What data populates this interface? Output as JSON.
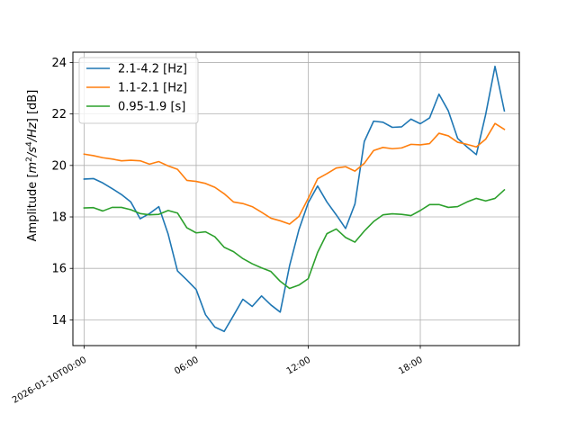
{
  "chart_data": {
    "type": "line",
    "title": "",
    "xlabel": "",
    "ylabel": "Amplitude [m²/s⁴/Hz] [dB]",
    "ylabel_parts": {
      "prefix": "Amplitude [",
      "m": "m",
      "sup1": "2",
      "s": "/s",
      "sup2": "4",
      "hz": "/Hz",
      "suffix": "] [dB]"
    },
    "xlim": [
      -0.6,
      23.3
    ],
    "ylim": [
      13.0,
      24.4
    ],
    "xticks": [
      {
        "value": 0,
        "label": "2026-01-10T00:00"
      },
      {
        "value": 6,
        "label": "06:00"
      },
      {
        "value": 12,
        "label": "12:00"
      },
      {
        "value": 18,
        "label": "18:00"
      }
    ],
    "yticks": [
      {
        "value": 14,
        "label": "14"
      },
      {
        "value": 16,
        "label": "16"
      },
      {
        "value": 18,
        "label": "18"
      },
      {
        "value": 20,
        "label": "20"
      },
      {
        "value": 22,
        "label": "22"
      },
      {
        "value": 24,
        "label": "24"
      }
    ],
    "grid": true,
    "legend_position": "top-left",
    "x": [
      0,
      0.5,
      1,
      1.5,
      2,
      2.5,
      3,
      3.5,
      4,
      4.5,
      5,
      5.5,
      6,
      6.5,
      7,
      7.5,
      8,
      8.5,
      9,
      9.5,
      10,
      10.5,
      11,
      11.5,
      12,
      12.5,
      13,
      13.5,
      14,
      14.5,
      15,
      15.5,
      16,
      16.5,
      17,
      17.5,
      18,
      18.5,
      19,
      19.5,
      20,
      20.5,
      21,
      21.5,
      22,
      22.5
    ],
    "series": [
      {
        "name": "2.1-4.2 [Hz]",
        "color": "#1f77b4",
        "values": [
          19.47,
          19.49,
          19.32,
          19.1,
          18.87,
          18.58,
          17.93,
          18.13,
          18.4,
          17.33,
          15.9,
          15.55,
          15.18,
          14.2,
          13.72,
          13.55,
          14.17,
          14.8,
          14.52,
          14.93,
          14.58,
          14.3,
          16.1,
          17.5,
          18.55,
          19.2,
          18.58,
          18.08,
          17.55,
          18.5,
          20.93,
          21.72,
          21.68,
          21.48,
          21.5,
          21.8,
          21.62,
          21.85,
          22.77,
          22.12,
          21.05,
          20.72,
          20.42,
          21.98,
          23.85,
          22.12
        ]
      },
      {
        "name": "1.1-2.1 [Hz]",
        "color": "#ff7f0e",
        "values": [
          20.44,
          20.38,
          20.3,
          20.25,
          20.18,
          20.2,
          20.18,
          20.05,
          20.15,
          19.98,
          19.85,
          19.42,
          19.38,
          19.3,
          19.15,
          18.9,
          18.58,
          18.52,
          18.4,
          18.18,
          17.95,
          17.85,
          17.72,
          18.02,
          18.72,
          19.48,
          19.68,
          19.9,
          19.95,
          19.78,
          20.08,
          20.58,
          20.7,
          20.65,
          20.68,
          20.82,
          20.8,
          20.85,
          21.25,
          21.15,
          20.9,
          20.82,
          20.72,
          21.02,
          21.63,
          21.4
        ]
      },
      {
        "name": "0.95-1.9 [s]",
        "color": "#2ca02c",
        "values": [
          18.35,
          18.36,
          18.23,
          18.37,
          18.37,
          18.28,
          18.13,
          18.08,
          18.1,
          18.25,
          18.15,
          17.58,
          17.38,
          17.42,
          17.23,
          16.82,
          16.65,
          16.38,
          16.18,
          16.02,
          15.88,
          15.5,
          15.22,
          15.35,
          15.6,
          16.62,
          17.35,
          17.53,
          17.2,
          17.02,
          17.45,
          17.82,
          18.08,
          18.12,
          18.1,
          18.05,
          18.25,
          18.48,
          18.48,
          18.37,
          18.4,
          18.58,
          18.72,
          18.62,
          18.72,
          19.05
        ]
      }
    ]
  }
}
